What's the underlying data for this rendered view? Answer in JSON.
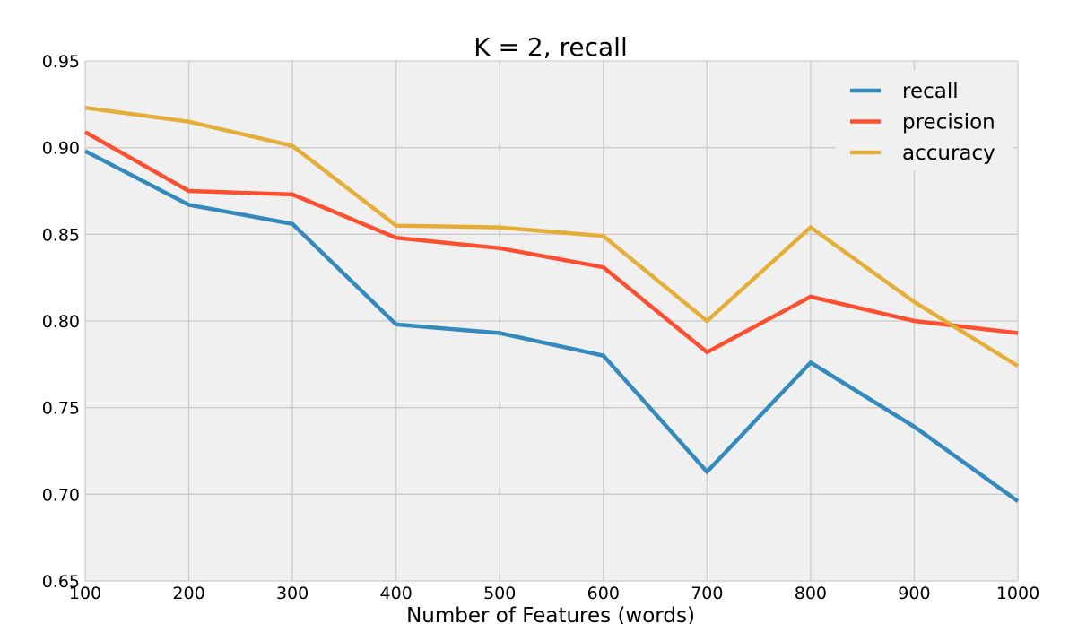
{
  "chart_data": {
    "type": "line",
    "title": "K = 2, recall",
    "xlabel": "Number of Features (words)",
    "ylabel": "",
    "x": [
      100,
      200,
      300,
      400,
      500,
      600,
      700,
      800,
      900,
      1000
    ],
    "xlim": [
      100,
      1000
    ],
    "ylim": [
      0.65,
      0.95
    ],
    "xticks": [
      100,
      200,
      300,
      400,
      500,
      600,
      700,
      800,
      900,
      1000
    ],
    "yticks": [
      0.65,
      0.7,
      0.75,
      0.8,
      0.85,
      0.9,
      0.95
    ],
    "grid": true,
    "legend_position": "top-right",
    "series": [
      {
        "name": "recall",
        "color": "#348ABD",
        "values": [
          0.898,
          0.867,
          0.856,
          0.798,
          0.793,
          0.78,
          0.713,
          0.776,
          0.739,
          0.696
        ]
      },
      {
        "name": "precision",
        "color": "#FC4F30",
        "values": [
          0.909,
          0.875,
          0.873,
          0.848,
          0.842,
          0.831,
          0.782,
          0.814,
          0.8,
          0.793
        ]
      },
      {
        "name": "accuracy",
        "color": "#E5AE38",
        "values": [
          0.923,
          0.915,
          0.901,
          0.855,
          0.854,
          0.849,
          0.8,
          0.854,
          0.811,
          0.774
        ]
      }
    ]
  }
}
